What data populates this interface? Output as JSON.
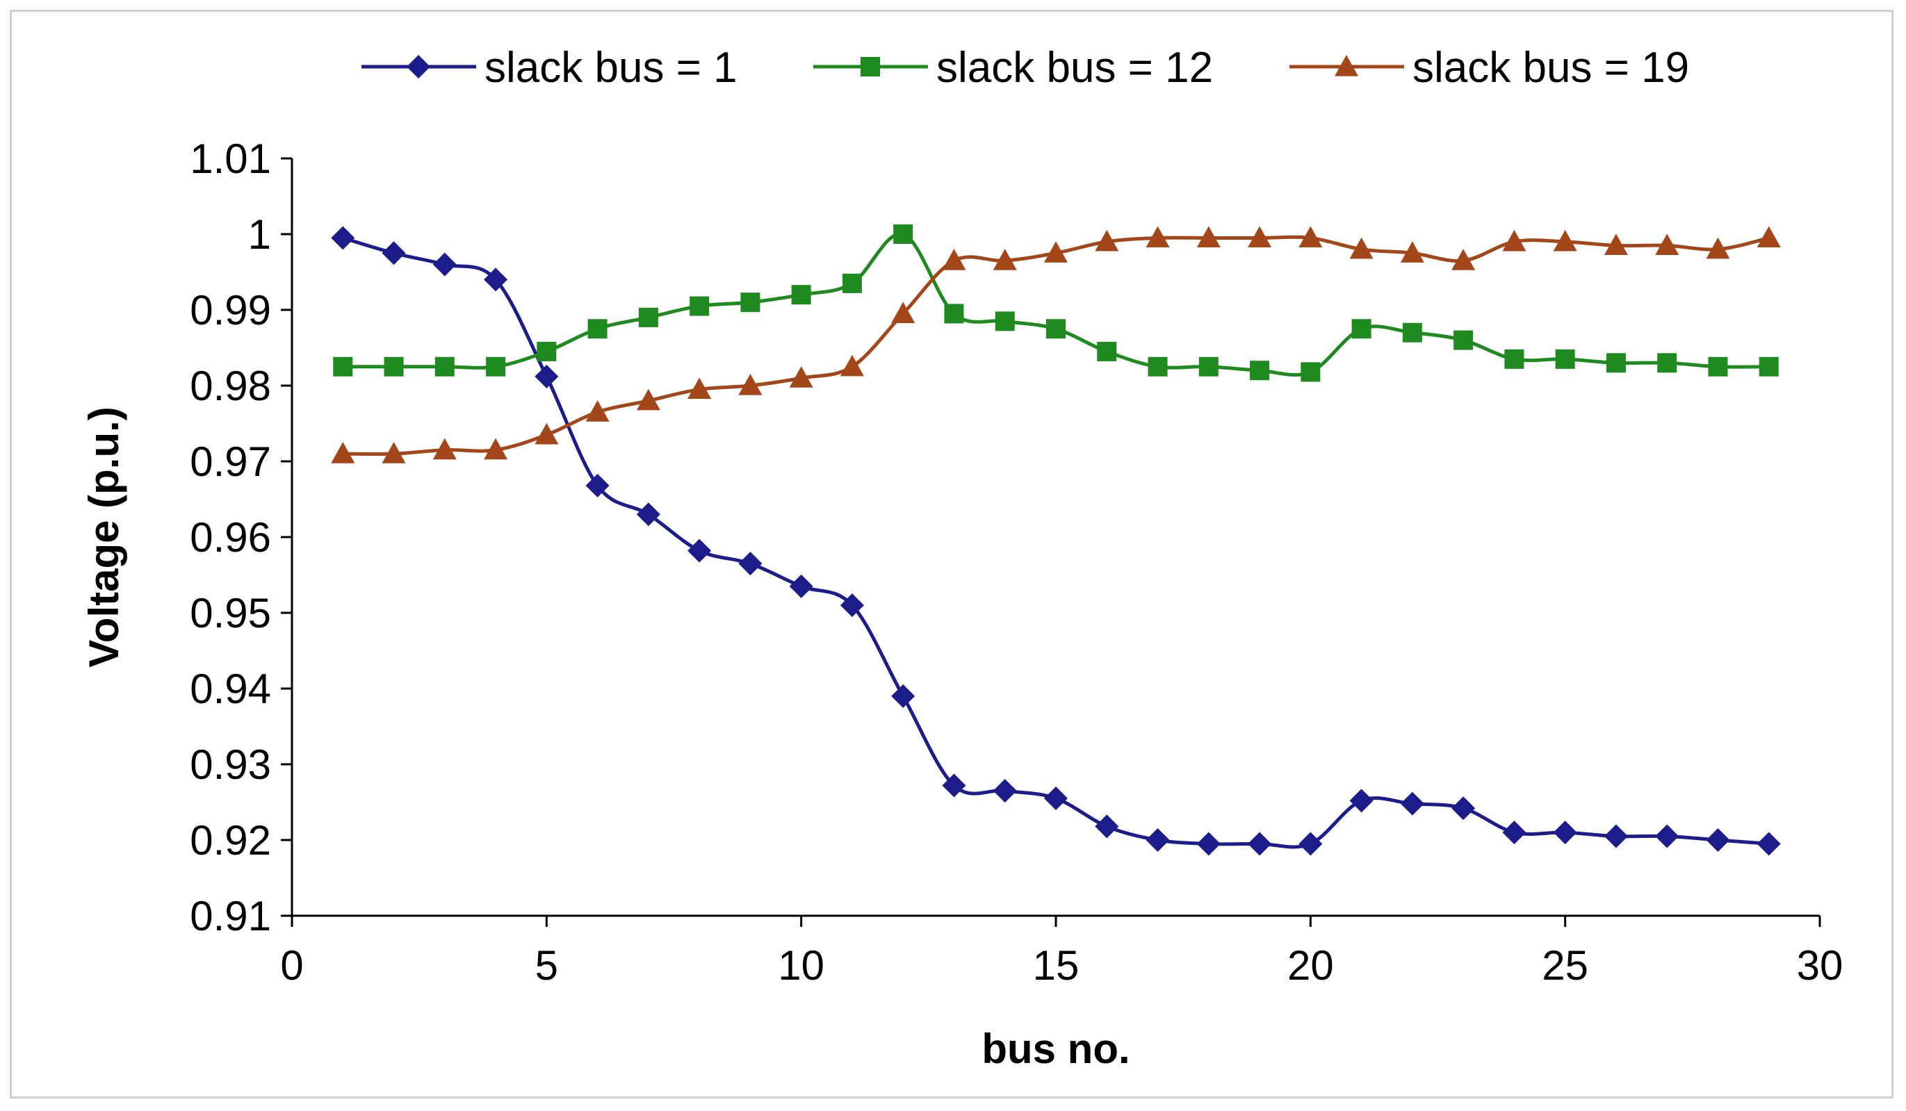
{
  "chart_data": {
    "type": "line",
    "xlabel": "bus no.",
    "ylabel": "Voltage (p.u.)",
    "xlim": [
      0,
      30
    ],
    "ylim": [
      0.91,
      1.01
    ],
    "xticks": [
      0,
      5,
      10,
      15,
      20,
      25,
      30
    ],
    "yticks": [
      0.91,
      0.92,
      0.93,
      0.94,
      0.95,
      0.96,
      0.97,
      0.98,
      0.99,
      1,
      1.01
    ],
    "ytick_labels": [
      "0.91",
      "0.92",
      "0.93",
      "0.94",
      "0.95",
      "0.96",
      "0.97",
      "0.98",
      "0.99",
      "1",
      "1.01"
    ],
    "grid": false,
    "legend_position": "top",
    "x": [
      1,
      2,
      3,
      4,
      5,
      6,
      7,
      8,
      9,
      10,
      11,
      12,
      13,
      14,
      15,
      16,
      17,
      18,
      19,
      20,
      21,
      22,
      23,
      24,
      25,
      26,
      27,
      28,
      29
    ],
    "series": [
      {
        "name": "slack bus = 1",
        "marker": "diamond",
        "color": "#1c1c8a",
        "values": [
          0.9995,
          0.9975,
          0.996,
          0.994,
          0.9812,
          0.9668,
          0.963,
          0.9582,
          0.9565,
          0.9535,
          0.951,
          0.939,
          0.9272,
          0.9265,
          0.9255,
          0.9218,
          0.92,
          0.9195,
          0.9195,
          0.9195,
          0.9252,
          0.9248,
          0.9242,
          0.921,
          0.921,
          0.9205,
          0.9205,
          0.92,
          0.9195
        ]
      },
      {
        "name": "slack bus = 12",
        "marker": "square",
        "color": "#1f8a1f",
        "values": [
          0.9825,
          0.9825,
          0.9825,
          0.9825,
          0.9845,
          0.9875,
          0.989,
          0.9905,
          0.991,
          0.992,
          0.9935,
          1.0,
          0.9895,
          0.9885,
          0.9875,
          0.9845,
          0.9825,
          0.9825,
          0.982,
          0.9818,
          0.9875,
          0.987,
          0.986,
          0.9835,
          0.9835,
          0.983,
          0.983,
          0.9825,
          0.9825
        ]
      },
      {
        "name": "slack bus = 19",
        "marker": "triangle",
        "color": "#a3461a",
        "values": [
          0.971,
          0.971,
          0.9715,
          0.9715,
          0.9735,
          0.9765,
          0.978,
          0.9795,
          0.98,
          0.981,
          0.9825,
          0.9895,
          0.9965,
          0.9965,
          0.9975,
          0.999,
          0.9995,
          0.9995,
          0.9995,
          0.9995,
          0.998,
          0.9975,
          0.9965,
          0.999,
          0.999,
          0.9985,
          0.9985,
          0.998,
          0.9995
        ]
      }
    ]
  }
}
